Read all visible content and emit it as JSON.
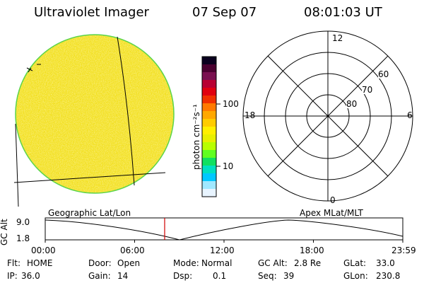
{
  "header": {
    "instrument": "Ultraviolet Imager",
    "date": "07 Sep 07",
    "time": "08:01:03 UT"
  },
  "image_panel": {
    "fill_color": "#f2df1a",
    "border_color": "#5ad44a"
  },
  "colorbar": {
    "label": "photon cm⁻²s⁻¹",
    "tick_labels": [
      "100",
      "10"
    ],
    "colors": [
      "#0a001e",
      "#4a0030",
      "#7a1050",
      "#b80032",
      "#e0000f",
      "#f03000",
      "#ff7a00",
      "#ffa800",
      "#ffcc00",
      "#fff000",
      "#e8f000",
      "#b8ff00",
      "#60ff20",
      "#10e060",
      "#00e0c0",
      "#00c8ff",
      "#a0e8ff",
      "#e8f4ff"
    ]
  },
  "polar_plot": {
    "hour_labels": {
      "top": "12",
      "left": "18",
      "right": "6",
      "bottom": "0"
    },
    "lat_labels": [
      "60",
      "70",
      "80"
    ]
  },
  "orbit_plot": {
    "left_header": "Geographic Lat/Lon",
    "right_header": "Apex MLat/MLT",
    "y_axis_label": "GC Alt",
    "y_ticks": [
      "9.0",
      "1.8"
    ],
    "x_ticks": [
      "00:00",
      "06:00",
      "12:00",
      "18:00",
      "23:59"
    ],
    "marker_time": "08:01",
    "marker_color": "#d00000"
  },
  "info": {
    "row1": [
      {
        "label": "Flt:",
        "value": "HOME"
      },
      {
        "label": "Door:",
        "value": "Open"
      },
      {
        "label": "Mode:",
        "value": "Normal"
      },
      {
        "label": "GC Alt:",
        "value": "2.8 Re"
      },
      {
        "label": "GLat:",
        "value": "33.0"
      }
    ],
    "row2": [
      {
        "label": "IP:",
        "value": "36.0"
      },
      {
        "label": "Gain:",
        "value": "14"
      },
      {
        "label": "Dsp:",
        "value": "0.1"
      },
      {
        "label": "Seq:",
        "value": "39"
      },
      {
        "label": "GLon:",
        "value": "230.8"
      }
    ]
  }
}
